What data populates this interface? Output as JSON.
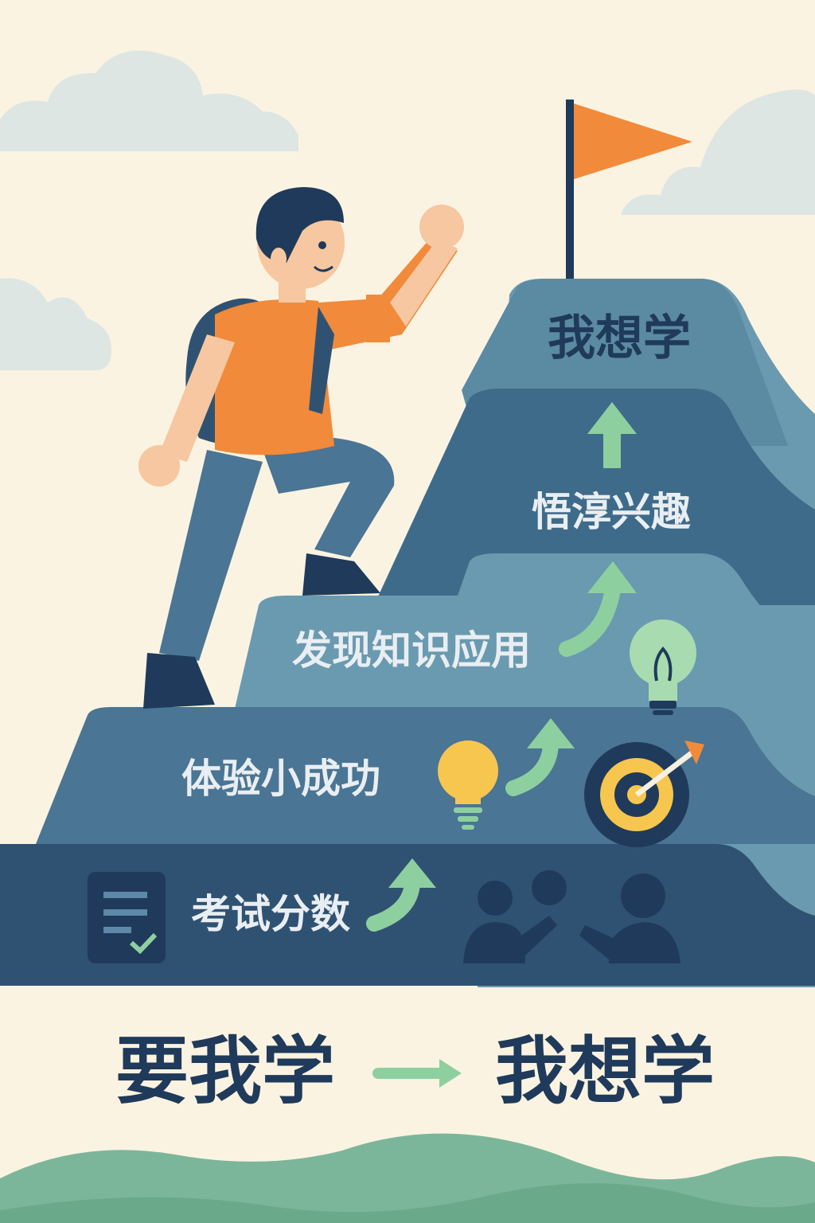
{
  "peak": {
    "label": "我想学"
  },
  "steps": [
    {
      "label": "悟淳兴趣"
    },
    {
      "label": "发现知识应用"
    },
    {
      "label": "体验小成功"
    },
    {
      "label": "考试分数"
    }
  ],
  "bottom": {
    "from": "要我学",
    "to": "我想学"
  },
  "colors": {
    "background": "#fbf3e1",
    "mountain_dark": "#2c4a6a",
    "mountain_mid": "#3f6b8a",
    "mountain_light": "#6a9ab0",
    "arrow_green": "#8ecfa0",
    "flag_orange": "#f18a3a",
    "bulb_yellow": "#f6c64f",
    "hills_green": "#7cb69a",
    "text_dark": "#1f3a5a"
  },
  "icons": [
    "cloud-icon",
    "flag-icon",
    "climber-figure",
    "up-arrow-icon",
    "lightbulb-icon",
    "target-icon",
    "document-check-icon",
    "people-discussion-icon",
    "right-arrow-icon"
  ]
}
